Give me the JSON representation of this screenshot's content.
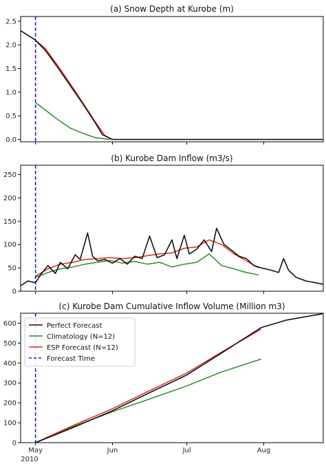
{
  "colors": {
    "perfect": "#111111",
    "climatology": "#2a8c2a",
    "esp": "#e0261e",
    "forecast_time": "#1a1acc",
    "axis": "#000000"
  },
  "x_axis": {
    "ticks": [
      "May",
      "Jun",
      "Jul",
      "Aug"
    ],
    "year_label": "2010",
    "range": [
      "2010-04-25",
      "2010-08-25"
    ]
  },
  "forecast_time": "2010-05-01",
  "legend": {
    "placement": "top-left",
    "entries": [
      "Perfect Forecast",
      "Climatology (N=12)",
      "ESP Forecast (N=12)",
      "Forecast Time"
    ]
  },
  "chart_data": [
    {
      "type": "line",
      "panel": "a",
      "title": "(a) Snow Depth at Kurobe (m)",
      "ylim": [
        -0.05,
        2.6
      ],
      "yticks": [
        "0.0",
        "0.5",
        "1.0",
        "1.5",
        "2.0",
        "2.5"
      ],
      "series": [
        {
          "name": "Perfect Forecast",
          "role": "perfect",
          "x": [
            "2010-04-25",
            "2010-05-01",
            "2010-05-05",
            "2010-05-10",
            "2010-05-15",
            "2010-05-20",
            "2010-05-25",
            "2010-05-28",
            "2010-06-01",
            "2010-06-10",
            "2010-08-25"
          ],
          "y": [
            2.3,
            2.1,
            1.88,
            1.52,
            1.14,
            0.76,
            0.36,
            0.1,
            0.0,
            0.0,
            0.0
          ]
        },
        {
          "name": "Climatology (N=12)",
          "role": "climatology",
          "x": [
            "2010-05-01",
            "2010-05-05",
            "2010-05-10",
            "2010-05-15",
            "2010-05-20",
            "2010-05-25",
            "2010-05-31"
          ],
          "y": [
            0.78,
            0.62,
            0.42,
            0.24,
            0.13,
            0.04,
            0.0
          ]
        },
        {
          "name": "ESP Forecast (N=12)",
          "role": "esp",
          "x": [
            "2010-05-01",
            "2010-05-05",
            "2010-05-10",
            "2010-05-15",
            "2010-05-20",
            "2010-05-25",
            "2010-05-29",
            "2010-06-01"
          ],
          "y": [
            2.1,
            1.92,
            1.56,
            1.18,
            0.78,
            0.38,
            0.08,
            0.0
          ]
        }
      ]
    },
    {
      "type": "line",
      "panel": "b",
      "title": "(b) Kurobe Dam Inflow (m3/s)",
      "ylim": [
        0,
        270
      ],
      "yticks": [
        "0",
        "50",
        "100",
        "150",
        "200",
        "250"
      ],
      "series": [
        {
          "name": "Perfect Forecast",
          "role": "perfect",
          "x": [
            "2010-04-25",
            "2010-04-28",
            "2010-05-01",
            "2010-05-03",
            "2010-05-06",
            "2010-05-09",
            "2010-05-11",
            "2010-05-14",
            "2010-05-17",
            "2010-05-19",
            "2010-05-22",
            "2010-05-24",
            "2010-05-26",
            "2010-05-29",
            "2010-06-01",
            "2010-06-04",
            "2010-06-07",
            "2010-06-10",
            "2010-06-13",
            "2010-06-16",
            "2010-06-19",
            "2010-06-22",
            "2010-06-25",
            "2010-06-27",
            "2010-06-30",
            "2010-07-02",
            "2010-07-05",
            "2010-07-08",
            "2010-07-11",
            "2010-07-13",
            "2010-07-16",
            "2010-07-19",
            "2010-07-22",
            "2010-07-25",
            "2010-07-28",
            "2010-07-31",
            "2010-08-04",
            "2010-08-07",
            "2010-08-09",
            "2010-08-11",
            "2010-08-14",
            "2010-08-18",
            "2010-08-25"
          ],
          "y": [
            12,
            22,
            18,
            35,
            55,
            38,
            62,
            48,
            78,
            68,
            125,
            75,
            65,
            68,
            60,
            70,
            58,
            75,
            70,
            118,
            72,
            78,
            110,
            70,
            120,
            80,
            90,
            110,
            85,
            135,
            100,
            88,
            75,
            70,
            55,
            50,
            45,
            40,
            70,
            45,
            30,
            22,
            15
          ]
        },
        {
          "name": "Climatology (N=12)",
          "role": "climatology",
          "x": [
            "2010-05-01",
            "2010-05-06",
            "2010-05-11",
            "2010-05-16",
            "2010-05-21",
            "2010-05-26",
            "2010-05-31",
            "2010-06-05",
            "2010-06-10",
            "2010-06-15",
            "2010-06-20",
            "2010-06-25",
            "2010-06-30",
            "2010-07-05",
            "2010-07-10",
            "2010-07-15",
            "2010-07-20",
            "2010-07-25",
            "2010-07-30"
          ],
          "y": [
            30,
            40,
            48,
            52,
            58,
            62,
            66,
            60,
            64,
            58,
            62,
            52,
            58,
            62,
            80,
            55,
            48,
            40,
            35
          ]
        },
        {
          "name": "ESP Forecast (N=12)",
          "role": "esp",
          "x": [
            "2010-05-01",
            "2010-05-06",
            "2010-05-11",
            "2010-05-16",
            "2010-05-21",
            "2010-05-26",
            "2010-05-31",
            "2010-06-05",
            "2010-06-10",
            "2010-06-15",
            "2010-06-20",
            "2010-06-25",
            "2010-06-30",
            "2010-07-05",
            "2010-07-10",
            "2010-07-15",
            "2010-07-20",
            "2010-07-25",
            "2010-07-30"
          ],
          "y": [
            32,
            48,
            58,
            62,
            68,
            70,
            72,
            70,
            72,
            76,
            80,
            82,
            92,
            95,
            110,
            100,
            80,
            65,
            50
          ]
        }
      ]
    },
    {
      "type": "line",
      "panel": "c",
      "title": "(c) Kurobe Dam Cumulative Inflow Volume (Million m3)",
      "ylim": [
        0,
        650
      ],
      "yticks": [
        "0",
        "100",
        "200",
        "300",
        "400",
        "500",
        "600"
      ],
      "series": [
        {
          "name": "Perfect Forecast",
          "role": "perfect",
          "x": [
            "2010-05-01",
            "2010-05-15",
            "2010-06-01",
            "2010-06-15",
            "2010-07-01",
            "2010-07-15",
            "2010-07-31",
            "2010-08-10",
            "2010-08-25"
          ],
          "y": [
            0,
            70,
            160,
            245,
            340,
            450,
            578,
            615,
            648
          ]
        },
        {
          "name": "Climatology (N=12)",
          "role": "climatology",
          "x": [
            "2010-05-01",
            "2010-05-15",
            "2010-06-01",
            "2010-06-15",
            "2010-07-01",
            "2010-07-15",
            "2010-07-31"
          ],
          "y": [
            0,
            75,
            155,
            215,
            285,
            355,
            420
          ]
        },
        {
          "name": "ESP Forecast (N=12)",
          "role": "esp",
          "x": [
            "2010-05-01",
            "2010-05-15",
            "2010-06-01",
            "2010-06-15",
            "2010-07-01",
            "2010-07-15",
            "2010-07-31"
          ],
          "y": [
            0,
            80,
            170,
            255,
            350,
            455,
            570
          ]
        }
      ]
    }
  ]
}
